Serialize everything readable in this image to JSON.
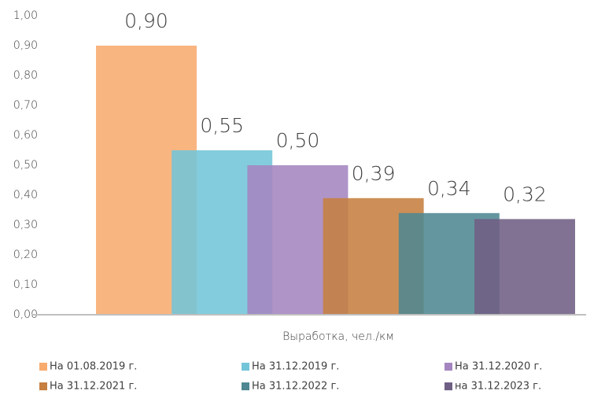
{
  "chart_data": {
    "type": "bar",
    "categories": [
      "Выработка, чел./км"
    ],
    "series": [
      {
        "name": "На 01.08.2019 г.",
        "color": "#f8ab6e",
        "values": [
          0.9
        ],
        "value_labels": [
          "0,90"
        ]
      },
      {
        "name": "На 31.12.2019 г.",
        "color": "#72c5d8",
        "values": [
          0.55
        ],
        "value_labels": [
          "0,55"
        ]
      },
      {
        "name": "На 31.12.2020 г.",
        "color": "#a485c0",
        "values": [
          0.5
        ],
        "value_labels": [
          "0,50"
        ]
      },
      {
        "name": "На 31.12.2021 г.",
        "color": "#c67f40",
        "values": [
          0.39
        ],
        "value_labels": [
          "0,39"
        ]
      },
      {
        "name": "На 31.12.2022 г.",
        "color": "#4f8892",
        "values": [
          0.34
        ],
        "value_labels": [
          "0,34"
        ]
      },
      {
        "name": "на 31.12.2023 г.",
        "color": "#6f5f84",
        "values": [
          0.32
        ],
        "value_labels": [
          "0,32"
        ]
      }
    ],
    "ylim": [
      0,
      1
    ],
    "yticks": [
      {
        "value": 0,
        "label": "0,00"
      },
      {
        "value": 0.1,
        "label": "0,10"
      },
      {
        "value": 0.2,
        "label": "0,20"
      },
      {
        "value": 0.3,
        "label": "0,30"
      },
      {
        "value": 0.4,
        "label": "0,40"
      },
      {
        "value": 0.5,
        "label": "0,50"
      },
      {
        "value": 0.6,
        "label": "0,60"
      },
      {
        "value": 0.7,
        "label": "0,70"
      },
      {
        "value": 0.8,
        "label": "0,80"
      },
      {
        "value": 0.9,
        "label": "0,90"
      },
      {
        "value": 1,
        "label": "1,00"
      }
    ],
    "grid": false,
    "legend": "bottom"
  }
}
